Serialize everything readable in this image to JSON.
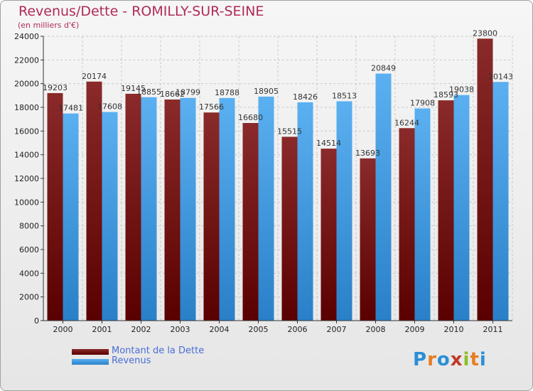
{
  "header": {
    "title": "Revenus/Dette - ROMILLY-SUR-SEINE",
    "subtitle": "(en milliers d'€)"
  },
  "legend": {
    "debt_label": "Montant de la Dette",
    "revenue_label": "Revenus"
  },
  "logo_text": "Proxiti",
  "colors": {
    "debt": "#7a1c1c",
    "revenue": "#3f9fe6",
    "title": "#b02a56"
  },
  "chart_data": {
    "type": "bar",
    "categories": [
      "2000",
      "2001",
      "2002",
      "2003",
      "2004",
      "2005",
      "2006",
      "2007",
      "2008",
      "2009",
      "2010",
      "2011"
    ],
    "series": [
      {
        "name": "Montant de la Dette",
        "values": [
          19203,
          20174,
          19145,
          18662,
          17566,
          16680,
          15515,
          14514,
          13693,
          16244,
          18593,
          23800
        ],
        "labels": [
          "19203",
          "20174",
          "19145",
          "18662",
          "17566",
          "16680",
          "15515",
          "14514",
          "13693",
          "16244",
          "18593",
          "23800"
        ]
      },
      {
        "name": "Revenus",
        "values": [
          17481,
          17608,
          18855,
          18799,
          18788,
          18905,
          18426,
          18513,
          20849,
          17908,
          19038,
          20143
        ],
        "labels": [
          "17481",
          "17608",
          "18855",
          "18799",
          "18788",
          "18905",
          "18426",
          "18513",
          "20849",
          "17908",
          "19038",
          "20143"
        ]
      }
    ],
    "ylim": [
      0,
      24000
    ],
    "yticks": [
      0,
      2000,
      4000,
      6000,
      8000,
      10000,
      12000,
      14000,
      16000,
      18000,
      20000,
      22000,
      24000
    ],
    "grid": true,
    "legend_position": "bottom-left"
  }
}
